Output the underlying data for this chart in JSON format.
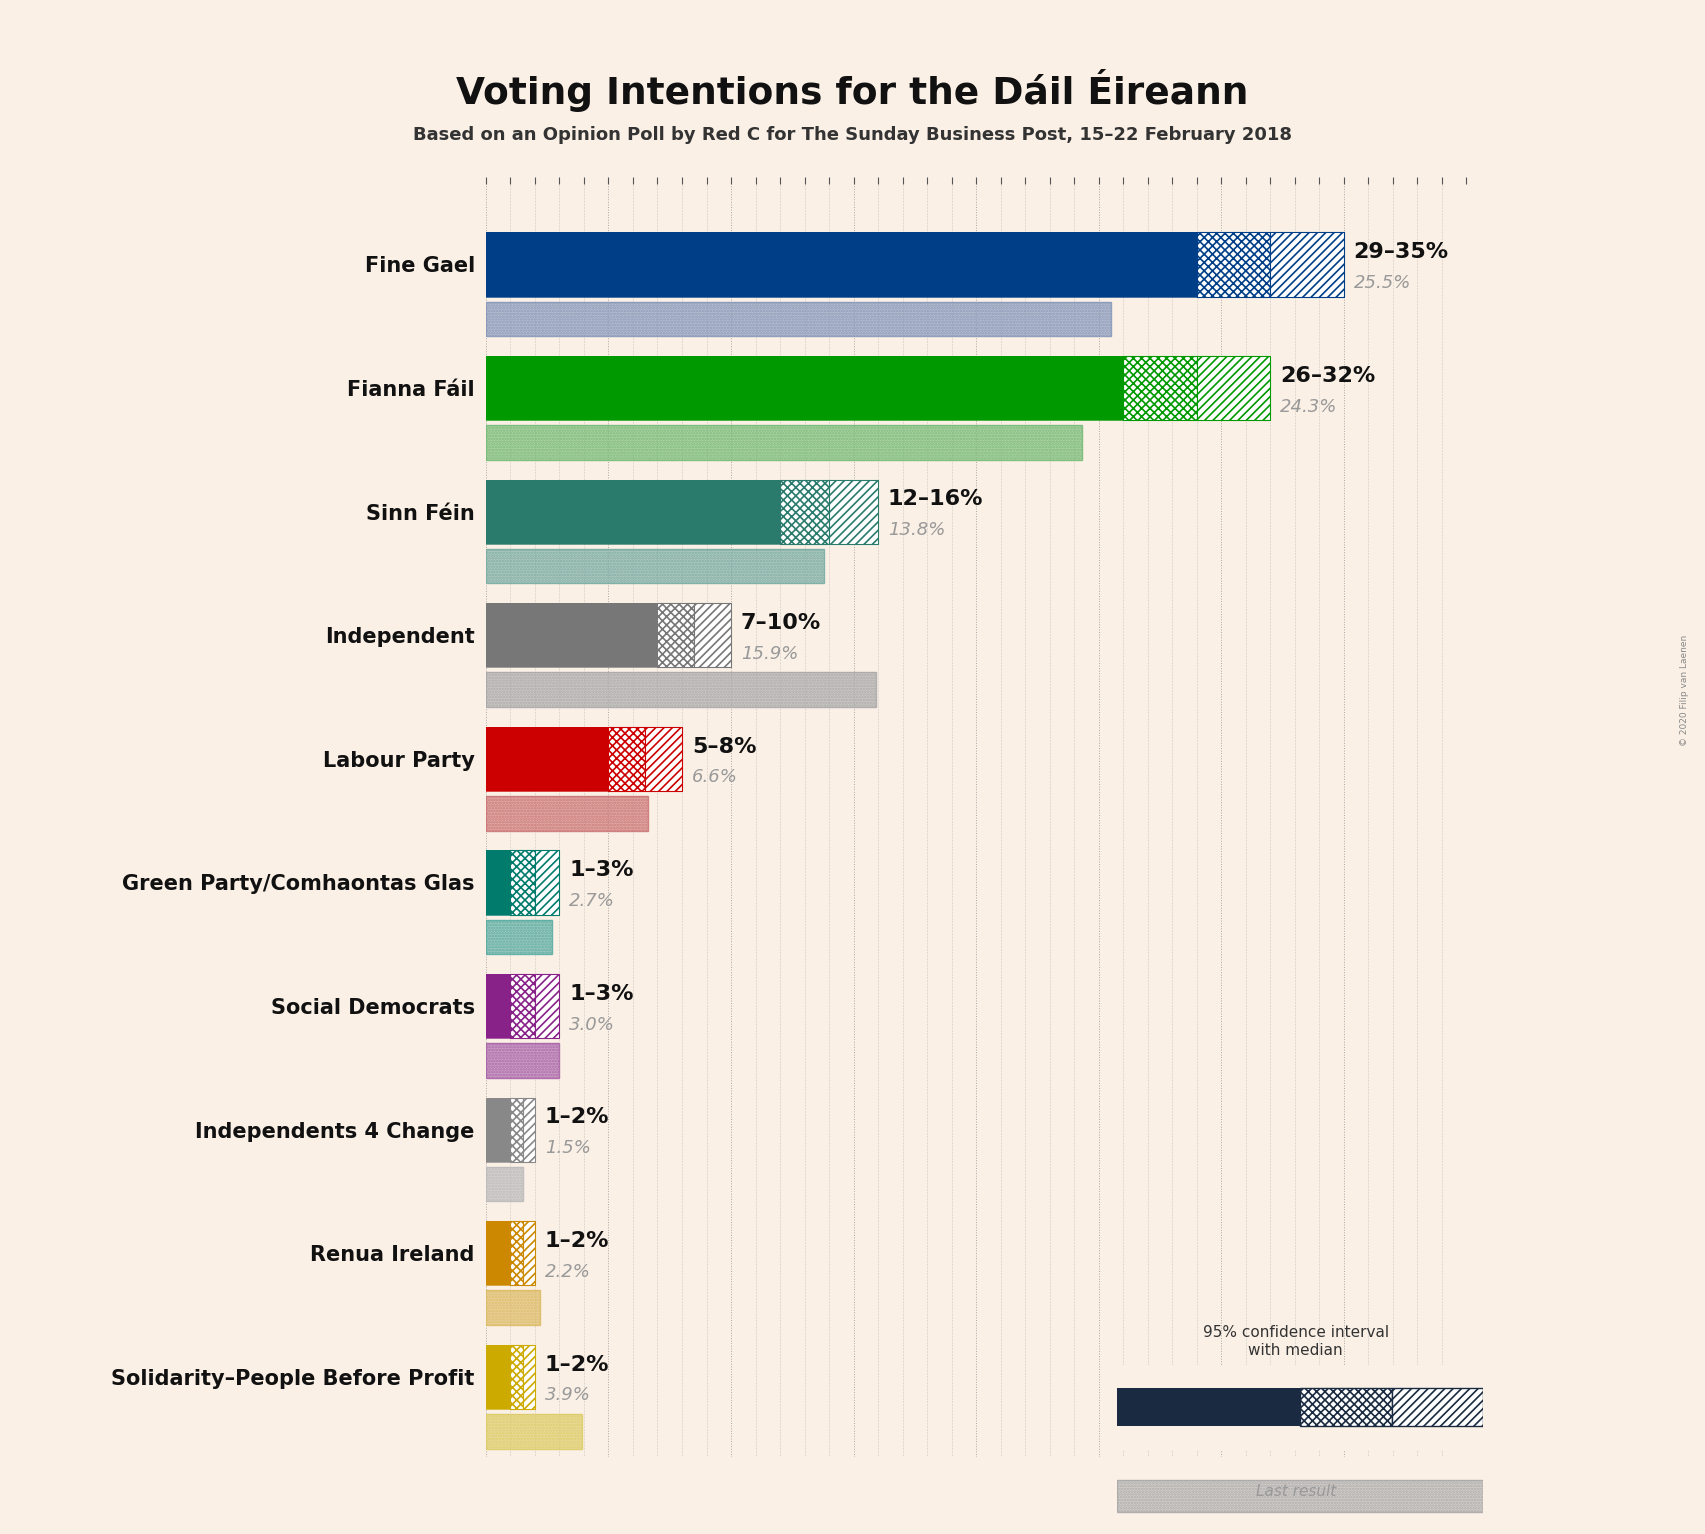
{
  "title": "Voting Intentions for the Dáil Éireann",
  "subtitle": "Based on an Opinion Poll by Red C for The Sunday Business Post, 15–22 February 2018",
  "copyright": "© 2020 Filip van Laenen",
  "background_color": "#FAF0E6",
  "parties": [
    {
      "name": "Fine Gael",
      "ci_low": 29,
      "ci_high": 35,
      "median": 32,
      "last_result": 25.5,
      "color": "#003F87",
      "light_color": "#8899BB"
    },
    {
      "name": "Fianna Fáil",
      "ci_low": 26,
      "ci_high": 32,
      "median": 29,
      "last_result": 24.3,
      "color": "#009900",
      "light_color": "#77BB77"
    },
    {
      "name": "Sinn Féin",
      "ci_low": 12,
      "ci_high": 16,
      "median": 14,
      "last_result": 13.8,
      "color": "#2A7B6C",
      "light_color": "#7AADA3"
    },
    {
      "name": "Independent",
      "ci_low": 7,
      "ci_high": 10,
      "median": 8.5,
      "last_result": 15.9,
      "color": "#777777",
      "light_color": "#AAAAAA"
    },
    {
      "name": "Labour Party",
      "ci_low": 5,
      "ci_high": 8,
      "median": 6.5,
      "last_result": 6.6,
      "color": "#CC0000",
      "light_color": "#CC7777"
    },
    {
      "name": "Green Party/Comhaontas Glas",
      "ci_low": 1,
      "ci_high": 3,
      "median": 2,
      "last_result": 2.7,
      "color": "#007B6C",
      "light_color": "#5AADA3"
    },
    {
      "name": "Social Democrats",
      "ci_low": 1,
      "ci_high": 3,
      "median": 2,
      "last_result": 3.0,
      "color": "#882288",
      "light_color": "#AA66AA"
    },
    {
      "name": "Independents 4 Change",
      "ci_low": 1,
      "ci_high": 2,
      "median": 1.5,
      "last_result": 1.5,
      "color": "#888888",
      "light_color": "#BBBBBB"
    },
    {
      "name": "Renua Ireland",
      "ci_low": 1,
      "ci_high": 2,
      "median": 1.5,
      "last_result": 2.2,
      "color": "#CC8800",
      "light_color": "#DDBB66"
    },
    {
      "name": "Solidarity–People Before Profit",
      "ci_low": 1,
      "ci_high": 2,
      "median": 1.5,
      "last_result": 3.9,
      "color": "#CCAA00",
      "light_color": "#DDCC66"
    }
  ],
  "xlim": [
    0,
    40
  ],
  "label_fontsize": 15,
  "title_fontsize": 27,
  "subtitle_fontsize": 13,
  "annotation_fontsize": 16,
  "last_result_fontsize": 13
}
